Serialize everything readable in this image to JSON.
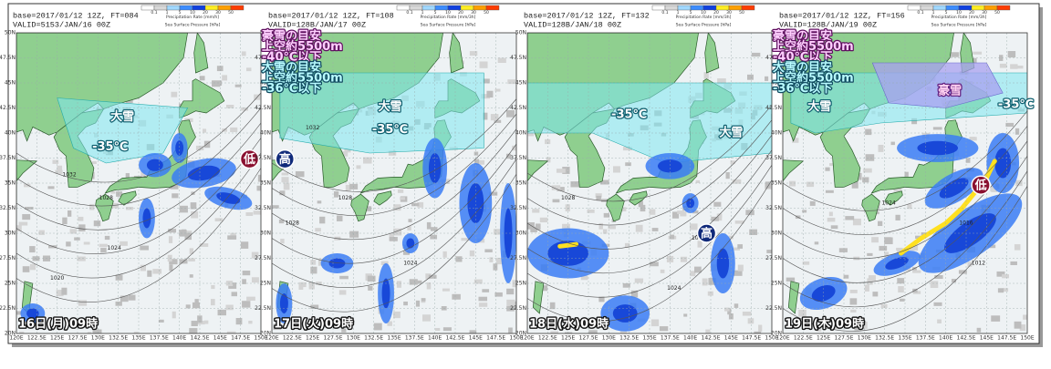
{
  "legend_ticks": [
    "0.1",
    "1",
    "5",
    "10",
    "20",
    "30",
    "50"
  ],
  "lat_labels": [
    "50N",
    "47.5N",
    "45N",
    "42.5N",
    "40N",
    "37.5N",
    "35N",
    "32.5N",
    "30N",
    "27.5N",
    "25N",
    "22.5N",
    "20N"
  ],
  "lon_labels": [
    "120E",
    "122.5E",
    "125E",
    "127.5E",
    "130E",
    "132.5E",
    "135E",
    "137.5E",
    "140E",
    "142.5E",
    "145E",
    "147.5E",
    "150E"
  ],
  "panels": [
    {
      "base": "base=2017/01/12 12Z, FT=084",
      "valid": "VALID=5153/JAN/16 00Z",
      "legend_title": "Precipitation Rate [mm/h]",
      "legend_subtitle": "Sea Surface Pressure [hPa]",
      "labels": [
        "大雪",
        "-35℃",
        "低"
      ],
      "isobars": [
        "1032",
        "1028",
        "1024",
        "1020"
      ],
      "date": "16日(月)09時"
    },
    {
      "base": "base=2017/01/12 12Z, FT=108",
      "valid": "VALID=128B/JAN/17 00Z",
      "legend_title": "Precipitation Rate [mm/3h]",
      "legend_subtitle": "Sea Surface Pressure [hPa]",
      "notes": [
        "豪雪の目安",
        "上空約5500m",
        "-40℃以下",
        "大雪の目安",
        "上空約5500m",
        "-36℃以下"
      ],
      "labels": [
        "大雪",
        "-35℃",
        "高"
      ],
      "isobars": [
        "1032",
        "1028",
        "1028",
        "1024"
      ],
      "date": "17日(火)09時"
    },
    {
      "base": "base=2017/01/12 12Z, FT=132",
      "valid": "VALID=128B/JAN/18 00Z",
      "legend_title": "Precipitation Rate [mm/3h]",
      "legend_subtitle": "Sea Surface Pressure [hPa]",
      "labels": [
        "-35℃",
        "大雪",
        "高"
      ],
      "isobars": [
        "1028",
        "1028",
        "1024"
      ],
      "date": "18日(水)09時"
    },
    {
      "base": "base=2017/01/12 12Z, FT=156",
      "valid": "VALID=128B/JAN/19 00Z",
      "legend_title": "Precipitation Rate [mm/3h]",
      "legend_subtitle": "Sea Surface Pressure [hPa]",
      "notes": [
        "豪雪の目安",
        "上空約5500m",
        "-40℃以下",
        "大雪の目安",
        "上空約5500m",
        "-36℃以下"
      ],
      "labels": [
        "豪雪",
        "大雪",
        "-35℃",
        "低"
      ],
      "isobars": [
        "1024",
        "1016",
        "1012"
      ],
      "date": "19日(木)09時"
    }
  ]
}
